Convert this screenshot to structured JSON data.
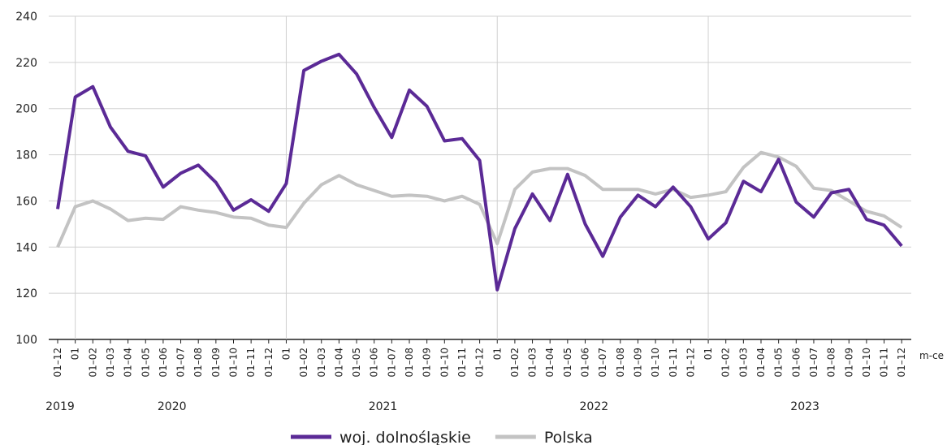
{
  "chart_data": {
    "type": "line",
    "categories": [
      "01–12",
      "01",
      "01–02",
      "01–03",
      "01–04",
      "01–05",
      "01–06",
      "01–07",
      "01–08",
      "01–09",
      "01–10",
      "01–11",
      "01–12",
      "01",
      "01–02",
      "01–03",
      "01–04",
      "01–05",
      "01–06",
      "01–07",
      "01–08",
      "01–09",
      "01–10",
      "01–11",
      "01–12",
      "01",
      "01–02",
      "01–03",
      "01–04",
      "01–05",
      "01–06",
      "01–07",
      "01–08",
      "01–09",
      "01–10",
      "01–11",
      "01–12",
      "01",
      "01–02",
      "01–03",
      "01–04",
      "01–05",
      "01–06",
      "01–07",
      "01–08",
      "01–09",
      "01–10",
      "01–11",
      "01–12"
    ],
    "years": [
      "2019",
      "2020",
      "2021",
      "2022",
      "2023"
    ],
    "x_unit": "m-ce",
    "series": [
      {
        "name": "woj. dolnośląskie",
        "color": "#5b2a96",
        "values": [
          156.5,
          205,
          209.5,
          192,
          181.5,
          179.5,
          166,
          172,
          175.5,
          168,
          156,
          160.5,
          155.5,
          167.5,
          216.5,
          220.5,
          223.5,
          215,
          200.5,
          187.5,
          208,
          201,
          186,
          187,
          177.5,
          121.5,
          148,
          163,
          151.5,
          171.5,
          150,
          136,
          153,
          162.5,
          157.5,
          166,
          157.5,
          143.5,
          150.5,
          168.5,
          164,
          178,
          159.5,
          153,
          163.5,
          165,
          152,
          149.5,
          140.5
        ]
      },
      {
        "name": "Polska",
        "color": "#c3c3c3",
        "values": [
          140,
          157.5,
          160,
          156.5,
          151.5,
          152.5,
          152,
          157.5,
          156,
          155,
          153,
          152.5,
          149.5,
          148.5,
          159,
          167,
          171,
          167,
          164.5,
          162,
          162.5,
          162,
          160,
          162,
          158.5,
          141.5,
          165,
          172.5,
          174,
          174,
          171,
          165,
          165,
          165,
          163,
          165,
          161.5,
          162.5,
          164,
          174.5,
          181,
          179,
          175,
          165.5,
          164.5,
          160,
          155.5,
          153.5,
          148.5
        ]
      }
    ],
    "ylim": [
      100,
      240
    ],
    "yticks": [
      100,
      120,
      140,
      160,
      180,
      200,
      220,
      240
    ],
    "grid": true,
    "legend": "bottom"
  }
}
